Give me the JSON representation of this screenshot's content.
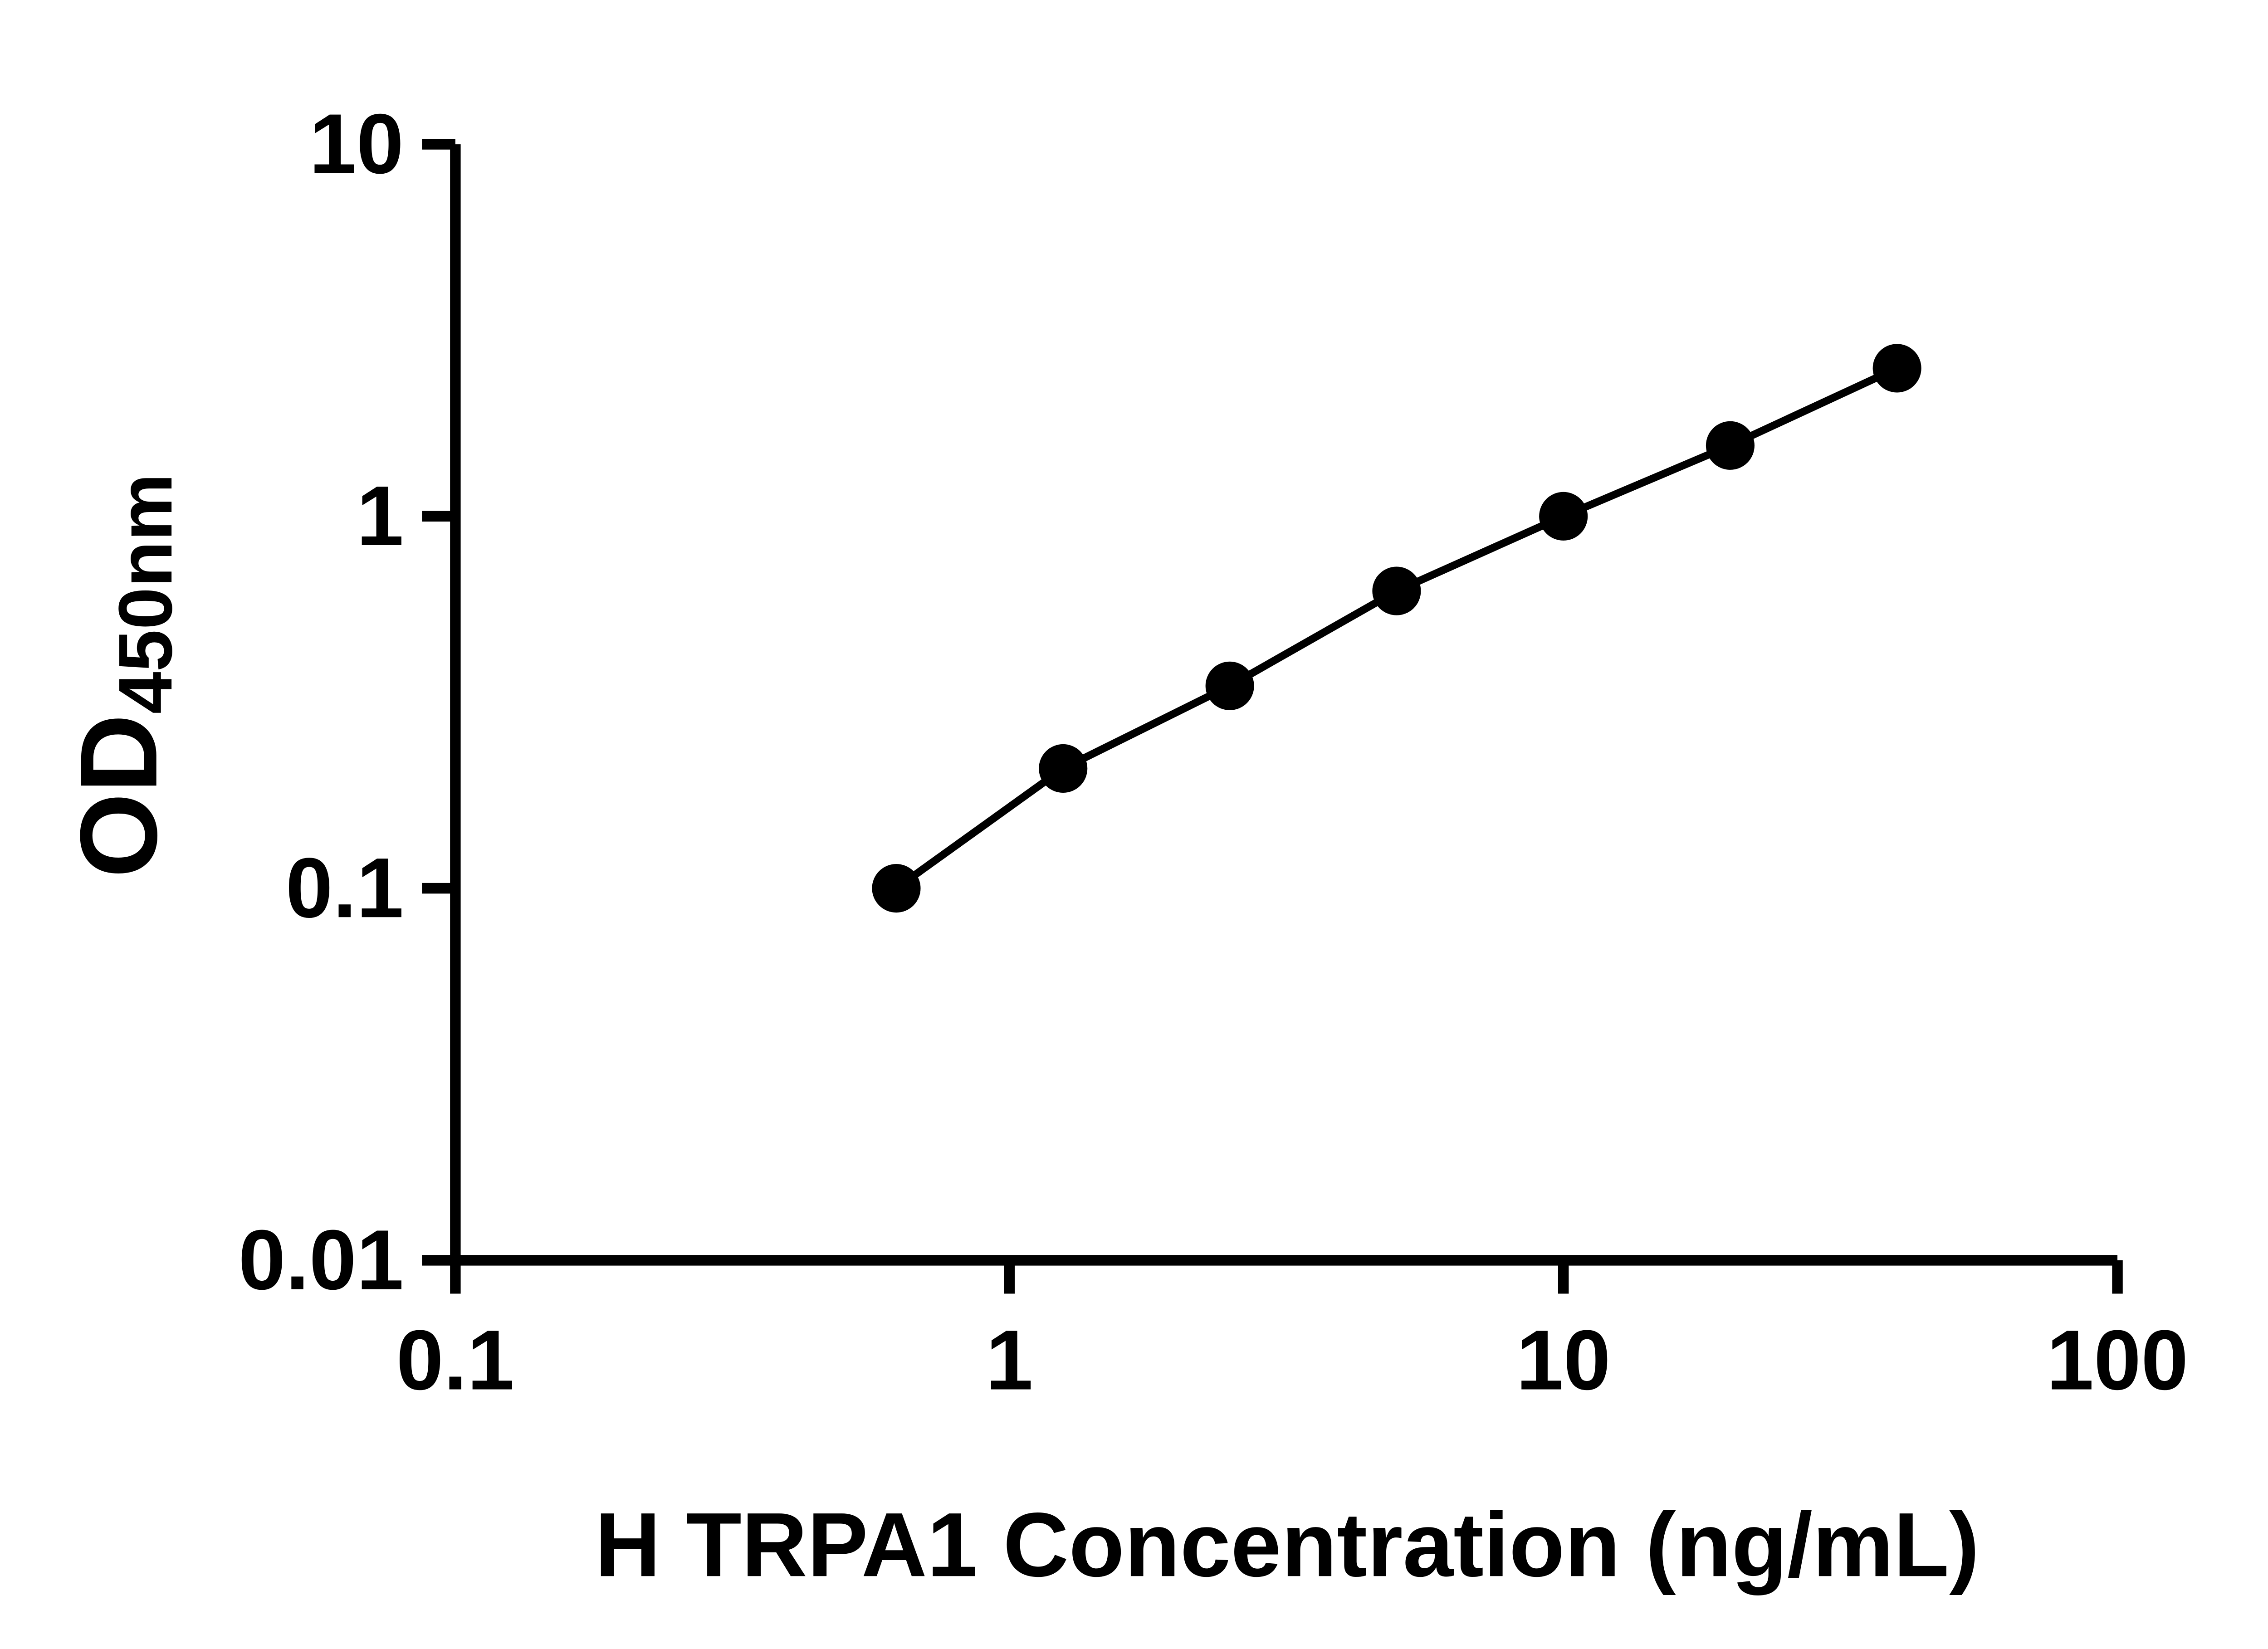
{
  "chart_data": {
    "type": "scatter",
    "title": "",
    "xlabel": "H TRPA1 Concentration (ng/mL)",
    "ylabel_main": "OD",
    "ylabel_sub": "450nm",
    "x_scale": "log",
    "y_scale": "log",
    "xlim": [
      0.1,
      100
    ],
    "ylim": [
      0.01,
      10
    ],
    "grid": false,
    "legend": "none",
    "axis_color": "#000000",
    "marker_color": "#000000",
    "line_color": "#000000",
    "x_ticks": [
      {
        "value": 0.1,
        "label": "0.1"
      },
      {
        "value": 1,
        "label": "1"
      },
      {
        "value": 10,
        "label": "10"
      },
      {
        "value": 100,
        "label": "100"
      }
    ],
    "y_ticks": [
      {
        "value": 0.01,
        "label": "0.01"
      },
      {
        "value": 0.1,
        "label": "0.1"
      },
      {
        "value": 1,
        "label": "1"
      },
      {
        "value": 10,
        "label": "10"
      }
    ],
    "x": [
      0.625,
      1.25,
      2.5,
      5,
      10,
      20,
      40
    ],
    "y": [
      0.1,
      0.21,
      0.35,
      0.63,
      1.0,
      1.55,
      2.5
    ]
  }
}
